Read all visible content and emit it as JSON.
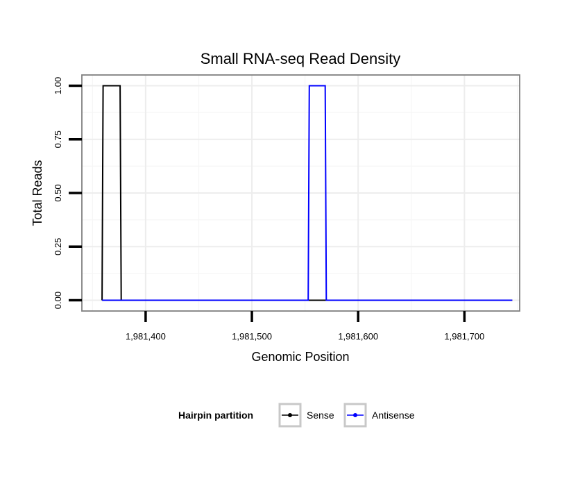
{
  "chart_data": {
    "type": "line",
    "title": "Small RNA-seq Read Density",
    "xlabel": "Genomic Position",
    "ylabel": "Total Reads",
    "xlim": [
      1981340,
      1981752
    ],
    "ylim": [
      -0.05,
      1.05
    ],
    "x_ticks": [
      1981400,
      1981500,
      1981600,
      1981700
    ],
    "x_tick_labels": [
      "1,981,400",
      "1,981,500",
      "1,981,600",
      "1,981,700"
    ],
    "y_ticks": [
      0,
      0.25,
      0.5,
      0.75,
      1
    ],
    "y_tick_labels": [
      "0.00",
      "0.25",
      "0.50",
      "0.75",
      "1.00"
    ],
    "grid": true,
    "legend_position": "bottom",
    "legend_title": "Hairpin partition",
    "series": [
      {
        "name": "Sense",
        "color": "#000000",
        "x": [
          1981359,
          1981360,
          1981376,
          1981377,
          1981745
        ],
        "y": [
          0,
          1,
          1,
          0,
          0
        ]
      },
      {
        "name": "Antisense",
        "color": "#0000ff",
        "x": [
          1981359,
          1981553,
          1981554,
          1981569,
          1981570,
          1981745
        ],
        "y": [
          0,
          0,
          1,
          1,
          0,
          0
        ]
      }
    ]
  }
}
